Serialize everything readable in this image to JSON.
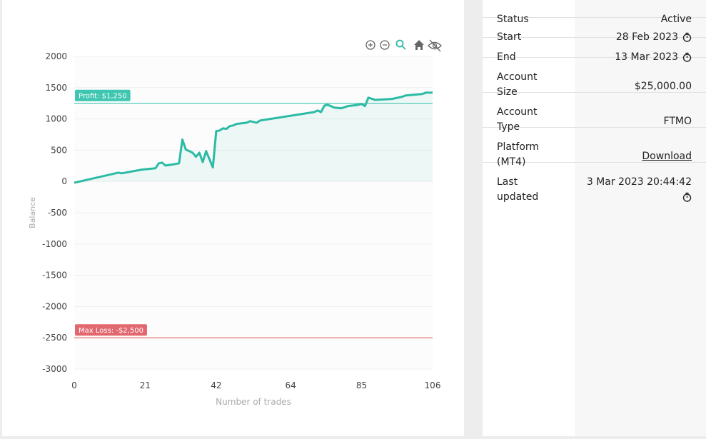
{
  "chart_data": {
    "type": "line",
    "y_label": "Balance",
    "x_label": "Number of trades",
    "x": [
      0,
      13,
      14,
      20,
      24,
      25,
      26,
      27,
      29,
      31,
      32,
      33,
      35,
      36,
      37,
      38,
      39,
      41,
      42,
      43,
      44,
      45,
      46,
      47,
      48,
      51,
      52,
      54,
      55,
      71,
      72,
      73,
      74,
      75,
      77,
      79,
      81,
      84,
      85,
      86,
      87,
      89,
      94,
      97,
      98,
      103,
      104,
      106
    ],
    "series": [
      {
        "color": "#2bbba4",
        "values": [
          -20,
          140,
          130,
          190,
          210,
          290,
          300,
          255,
          270,
          290,
          670,
          510,
          460,
          395,
          460,
          310,
          485,
          225,
          805,
          815,
          850,
          840,
          885,
          895,
          920,
          940,
          965,
          940,
          975,
          1110,
          1135,
          1110,
          1215,
          1225,
          1180,
          1170,
          1205,
          1225,
          1240,
          1205,
          1340,
          1305,
          1320,
          1355,
          1375,
          1400,
          1420,
          1420
        ]
      }
    ],
    "xlim": [
      0,
      106
    ],
    "xticks": [
      0,
      21,
      42,
      64,
      85,
      106
    ],
    "ylim": [
      -3000,
      2000
    ],
    "yticks": [
      -3000,
      -2500,
      -2000,
      -1500,
      -1000,
      -500,
      0,
      500,
      1000,
      1500,
      2000
    ],
    "grid": true,
    "annotations": [
      {
        "label": "Profit: $1,250",
        "value": 1250,
        "color": "#3fc6b0"
      },
      {
        "label": "Max Loss: -$2,500",
        "value": -2500,
        "color": "#e2676f"
      }
    ]
  },
  "table": {
    "rows": [
      [
        "Status",
        "Active"
      ],
      [
        "Start",
        "28 Feb 2023"
      ],
      [
        "End",
        "13 Mar 2023"
      ],
      [
        "Account Size",
        "$25,000.00"
      ],
      [
        "Account Type",
        "FTMO"
      ],
      [
        "Platform (MT4)",
        "Download"
      ],
      [
        "Last updated",
        "3 Mar 2023 20:44:42"
      ]
    ]
  }
}
